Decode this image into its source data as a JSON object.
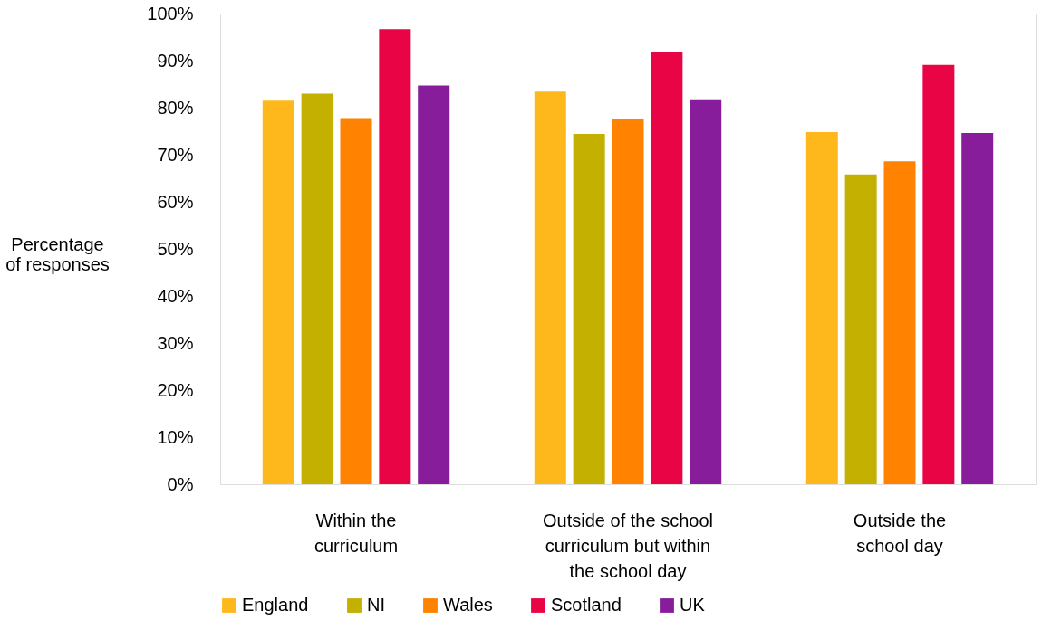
{
  "chart_data": {
    "type": "bar",
    "ylabel": "Percentage\nof responses",
    "categories": [
      "Within the\ncurriculum",
      "Outside of the school\ncurriculum but within\nthe school day",
      "Outside the\nschool day"
    ],
    "series": [
      {
        "name": "England",
        "color": "#ffb81c",
        "values": [
          81.5,
          83.4,
          74.8
        ]
      },
      {
        "name": "NI",
        "color": "#c4b000",
        "values": [
          83.0,
          74.4,
          65.8
        ]
      },
      {
        "name": "Wales",
        "color": "#ff8200",
        "values": [
          77.8,
          77.6,
          68.6
        ]
      },
      {
        "name": "Scotland",
        "color": "#e90446",
        "values": [
          96.7,
          91.8,
          89.1
        ]
      },
      {
        "name": "UK",
        "color": "#881d9c",
        "values": [
          84.7,
          81.8,
          74.6
        ]
      }
    ],
    "ylim": [
      0,
      100
    ],
    "yticks": [
      {
        "value": 0,
        "label": "0%"
      },
      {
        "value": 10,
        "label": "10%"
      },
      {
        "value": 20,
        "label": "20%"
      },
      {
        "value": 30,
        "label": "30%"
      },
      {
        "value": 40,
        "label": "40%"
      },
      {
        "value": 50,
        "label": "50%"
      },
      {
        "value": 60,
        "label": "60%"
      },
      {
        "value": 70,
        "label": "70%"
      },
      {
        "value": 80,
        "label": "80%"
      },
      {
        "value": 90,
        "label": "90%"
      },
      {
        "value": 100,
        "label": "100%"
      }
    ],
    "grid": false,
    "legend": "bottom"
  }
}
